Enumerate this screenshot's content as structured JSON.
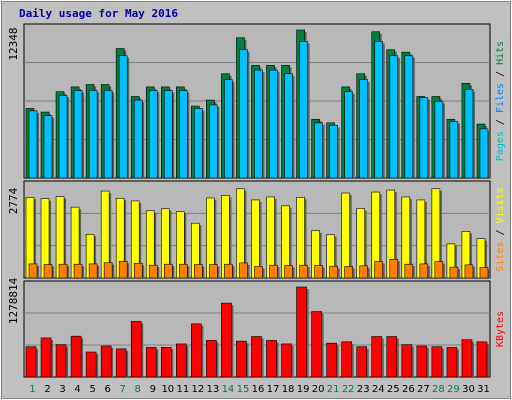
{
  "chart_data": {
    "type": "bar",
    "title": "Daily usage for May 2016",
    "categories": [
      "1",
      "2",
      "3",
      "4",
      "5",
      "6",
      "7",
      "8",
      "9",
      "10",
      "11",
      "12",
      "13",
      "14",
      "15",
      "16",
      "17",
      "18",
      "19",
      "20",
      "21",
      "22",
      "23",
      "24",
      "25",
      "26",
      "27",
      "28",
      "29",
      "30",
      "31"
    ],
    "weekend_categories": [
      "1",
      "7",
      "8",
      "14",
      "15",
      "21",
      "22",
      "28",
      "29"
    ],
    "grid": true,
    "panels": [
      {
        "id": "top",
        "max_label": "12348",
        "ymax": 12348,
        "legend": [
          "Pages",
          "Files",
          "Hits"
        ],
        "legend_colors": [
          "#00C0C0",
          "#0080FF",
          "#008040"
        ],
        "series": [
          {
            "name": "Hits",
            "color": "#008040",
            "values": [
              5800,
              5500,
              7200,
              7600,
              7800,
              7800,
              10800,
              6800,
              7600,
              7600,
              7600,
              6000,
              6500,
              8700,
              11700,
              9400,
              9400,
              9400,
              12348,
              4900,
              4600,
              7600,
              8700,
              12200,
              10700,
              10500,
              6800,
              6800,
              4900,
              7900,
              4500
            ]
          },
          {
            "name": "Files",
            "color": "#00C0FF",
            "values": [
              5600,
              5200,
              6900,
              7300,
              7300,
              7300,
              10200,
              6500,
              7300,
              7300,
              7300,
              5800,
              6100,
              8200,
              10700,
              9000,
              9000,
              8700,
              11400,
              4600,
              4400,
              7200,
              8200,
              11400,
              10200,
              10200,
              6700,
              6400,
              4700,
              7400,
              4100
            ]
          }
        ]
      },
      {
        "id": "mid",
        "max_label": "2774",
        "ymax": 2774,
        "legend": [
          "Sites",
          "Visits"
        ],
        "legend_colors": [
          "#FF8000",
          "#FFFF00"
        ],
        "series": [
          {
            "name": "Visits",
            "color": "#FFFF00",
            "values": [
              2460,
              2420,
              2480,
              2160,
              1330,
              2650,
              2430,
              2350,
              2050,
              2110,
              2020,
              1670,
              2440,
              2520,
              2720,
              2380,
              2470,
              2200,
              2460,
              1440,
              1320,
              2590,
              2120,
              2620,
              2680,
              2470,
              2380,
              2720,
              1040,
              1420,
              1200
            ]
          },
          {
            "name": "Sites",
            "color": "#FF8000",
            "values": [
              430,
              410,
              420,
              420,
              430,
              470,
              510,
              450,
              390,
              420,
              420,
              410,
              410,
              420,
              460,
              350,
              390,
              380,
              390,
              380,
              360,
              350,
              370,
              500,
              570,
              420,
              430,
              500,
              330,
              400,
              320
            ]
          }
        ]
      },
      {
        "id": "bot",
        "max_label": "1278814",
        "ymax": 1278814,
        "legend": [
          "KBytes"
        ],
        "legend_colors": [
          "#FF0000"
        ],
        "series": [
          {
            "name": "KBytes",
            "color": "#FF0000",
            "values": [
              430000,
              555000,
              460000,
              580000,
              355000,
              440000,
              400000,
              790000,
              420000,
              422000,
              470000,
              755000,
              520000,
              1050000,
              510000,
              575000,
              520000,
              470000,
              1278814,
              930000,
              480000,
              500000,
              430000,
              575000,
              575000,
              460000,
              440000,
              430000,
              420000,
              530000,
              500000
            ]
          }
        ]
      }
    ]
  },
  "colors": {
    "background": "#C0C0C0",
    "plot_background": "#B8B8B8",
    "grid": "#808080",
    "title": "#0000A0",
    "axis_label": "#000000",
    "weekend_label": "#008040",
    "weekday_label": "#000000"
  }
}
